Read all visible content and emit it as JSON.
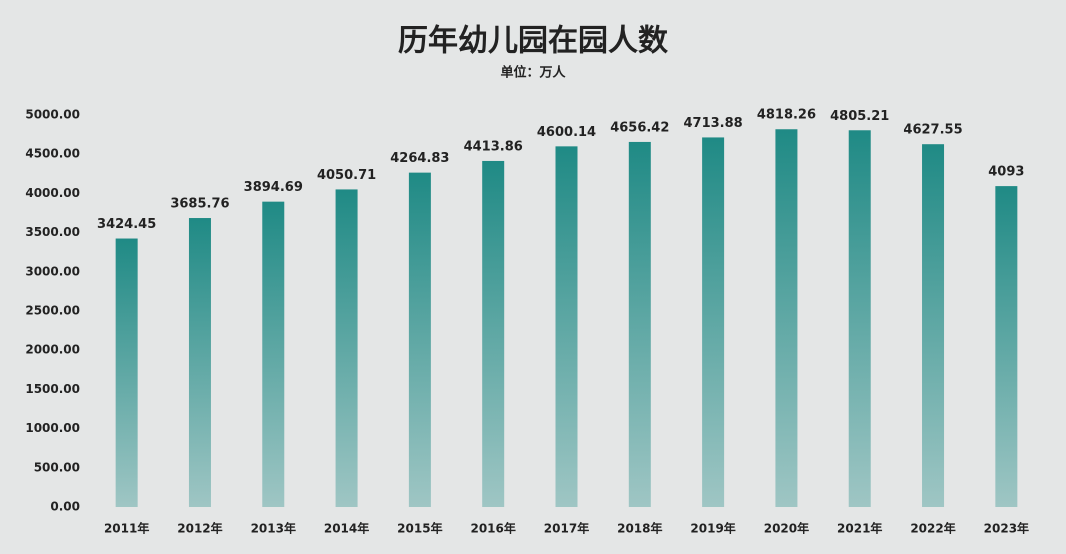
{
  "chart_data": {
    "type": "bar",
    "title": "历年幼儿园在园人数",
    "subtitle": "单位：万人",
    "categories": [
      "2011年",
      "2012年",
      "2013年",
      "2014年",
      "2015年",
      "2016年",
      "2017年",
      "2018年",
      "2019年",
      "2020年",
      "2021年",
      "2022年",
      "2023年"
    ],
    "values": [
      3424.45,
      3685.76,
      3894.69,
      4050.71,
      4264.83,
      4413.86,
      4600.14,
      4656.42,
      4713.88,
      4818.26,
      4805.21,
      4627.55,
      4093
    ],
    "color": "#1f8a85",
    "ylim": [
      0,
      5000
    ],
    "yticks": [
      {
        "value": 0,
        "label": "0.00"
      },
      {
        "value": 500,
        "label": "500.00"
      },
      {
        "value": 1000,
        "label": "1000.00"
      },
      {
        "value": 1500,
        "label": "1500.00"
      },
      {
        "value": 2000,
        "label": "2000.00"
      },
      {
        "value": 2500,
        "label": "2500.00"
      },
      {
        "value": 3000,
        "label": "3000.00"
      },
      {
        "value": 3500,
        "label": "3500.00"
      },
      {
        "value": 4000,
        "label": "4000.00"
      },
      {
        "value": 4500,
        "label": "4500.00"
      },
      {
        "value": 5000,
        "label": "5000.00"
      }
    ],
    "grid": false
  }
}
